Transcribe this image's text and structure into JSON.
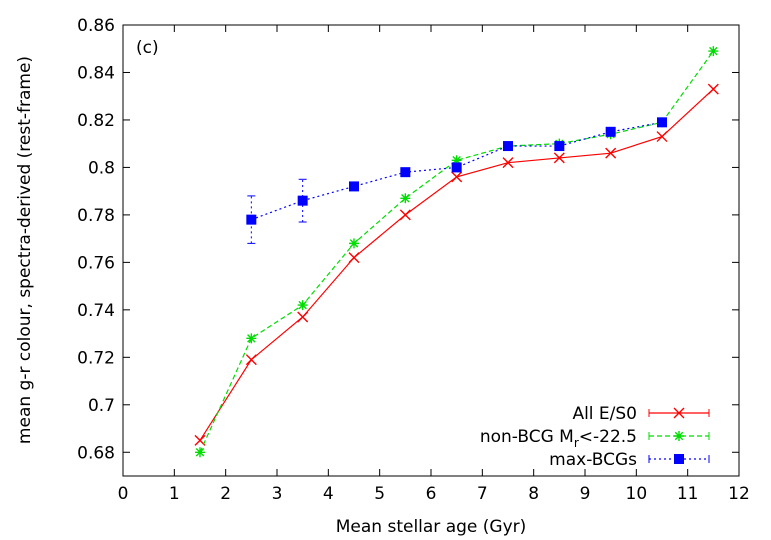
{
  "chart_data": {
    "type": "line",
    "panel_label": "(c)",
    "xlabel": "Mean stellar age (Gyr)",
    "ylabel": "mean g-r colour, spectra-derived (rest-frame)",
    "xlim": [
      0,
      12
    ],
    "ylim": [
      0.67,
      0.86
    ],
    "xticks": [
      0,
      1,
      2,
      3,
      4,
      5,
      6,
      7,
      8,
      9,
      10,
      11,
      12
    ],
    "yticks": [
      0.68,
      0.7,
      0.72,
      0.74,
      0.76,
      0.78,
      0.8,
      0.82,
      0.84,
      0.86
    ],
    "ytick_labels": [
      "0.68",
      "0.7",
      "0.72",
      "0.74",
      "0.76",
      "0.78",
      "0.8",
      "0.82",
      "0.84",
      "0.86"
    ],
    "grid": false,
    "legend_position": "bottom-right",
    "series": [
      {
        "name": "All E/S0",
        "color": "#ff0000",
        "marker": "x",
        "line_style": "solid",
        "x": [
          1.5,
          2.5,
          3.5,
          4.5,
          5.5,
          6.5,
          7.5,
          8.5,
          9.5,
          10.5,
          11.5
        ],
        "y": [
          0.685,
          0.719,
          0.737,
          0.762,
          0.78,
          0.796,
          0.802,
          0.804,
          0.806,
          0.813,
          0.833
        ]
      },
      {
        "name": "non-BCG M",
        "name_subscript": "r",
        "name_suffix": "<-22.5",
        "color": "#00dd00",
        "marker": "star",
        "line_style": "dashed",
        "x": [
          1.5,
          2.5,
          3.5,
          4.5,
          5.5,
          6.5,
          7.5,
          8.5,
          9.5,
          10.5,
          11.5
        ],
        "y": [
          0.68,
          0.728,
          0.742,
          0.768,
          0.787,
          0.803,
          0.809,
          0.81,
          0.814,
          0.819,
          0.849
        ]
      },
      {
        "name": "max-BCGs",
        "color": "#0000ff",
        "marker": "square",
        "line_style": "dotted",
        "x": [
          2.5,
          3.5,
          4.5,
          5.5,
          6.5,
          7.5,
          8.5,
          9.5,
          10.5
        ],
        "y": [
          0.778,
          0.786,
          0.792,
          0.798,
          0.8,
          0.809,
          0.809,
          0.815,
          0.819
        ],
        "err": [
          0.01,
          0.009,
          0,
          0,
          0,
          0,
          0,
          0,
          0
        ]
      }
    ]
  }
}
